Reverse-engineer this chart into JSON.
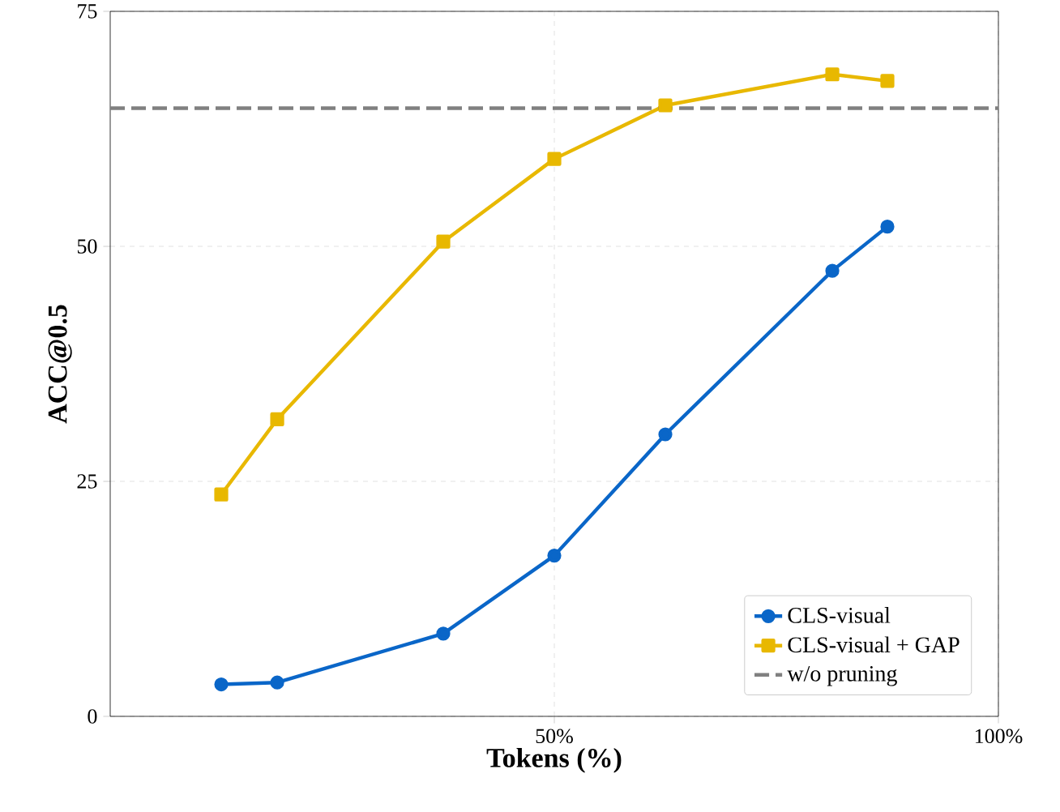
{
  "chart_data": {
    "type": "line",
    "xlabel": "Tokens (%)",
    "ylabel": "ACC@0.5",
    "x": [
      12.5,
      18.8,
      37.5,
      50,
      62.5,
      81.3,
      87.5
    ],
    "series": [
      {
        "name": "CLS-visual",
        "color": "#0a66c8",
        "marker": "circle",
        "values": [
          3.4,
          3.6,
          8.8,
          17.1,
          30.0,
          47.4,
          52.1
        ]
      },
      {
        "name": "CLS-visual + GAP",
        "color": "#e8b800",
        "marker": "square",
        "values": [
          23.6,
          31.6,
          50.5,
          59.3,
          65.0,
          68.3,
          67.6
        ]
      }
    ],
    "ref_lines": [
      {
        "axis": "y",
        "value": 64.7,
        "label": "w/o pruning",
        "color": "#808080",
        "line_style": "dashed"
      }
    ],
    "xlim": [
      0,
      100
    ],
    "ylim": [
      0,
      75
    ],
    "xticks": [
      {
        "value": 50,
        "label": "50%"
      },
      {
        "value": 100,
        "label": "100%"
      }
    ],
    "yticks": [
      0,
      25,
      50,
      75
    ],
    "grid": true,
    "legend": "bottom right",
    "line_style": "solid"
  }
}
